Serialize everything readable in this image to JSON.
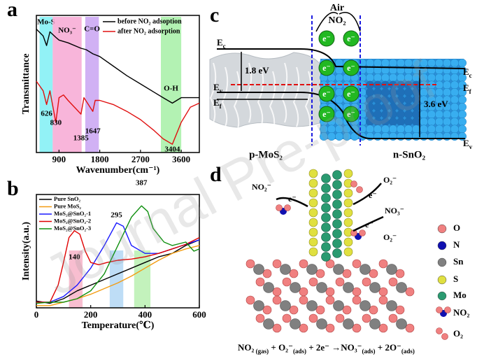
{
  "watermark": "Journal Pre-proof",
  "chart_data": [
    {
      "type": "line",
      "label": "a",
      "ylabel": "Transmittance",
      "xlabel": "Wavenumber(cm⁻¹)",
      "xlim": [
        400,
        4000
      ],
      "xticks": [
        900,
        1800,
        2700,
        3600
      ],
      "ylim": [
        0,
        100
      ],
      "legend": "upper right",
      "bands": [
        {
          "label": "Mo-S",
          "range": [
            470,
            760
          ],
          "color": "#7ff0f5"
        },
        {
          "label": "NO₃⁻",
          "range": [
            760,
            1400
          ],
          "color": "#f7a8d4"
        },
        {
          "label": "C=O",
          "range": [
            1480,
            1780
          ],
          "color": "#c9a3f2"
        },
        {
          "label": "O-H",
          "range": [
            3150,
            3600
          ],
          "color": "#a6f0a6"
        }
      ],
      "peaks": [
        626,
        830,
        1385,
        1647,
        3404
      ],
      "series": [
        {
          "name": "before NO₂ adsoption",
          "color": "#000000",
          "x": [
            400,
            550,
            626,
            700,
            830,
            900,
            1100,
            1385,
            1500,
            1647,
            1800,
            2100,
            2400,
            2700,
            3000,
            3200,
            3404,
            3600,
            3800,
            4000
          ],
          "values": [
            90,
            85,
            78,
            88,
            84,
            82,
            80,
            76,
            75,
            72,
            70,
            63,
            56,
            50,
            44,
            40,
            36,
            40,
            40,
            40
          ]
        },
        {
          "name": "after NO₂ adsorption",
          "color": "#e01010",
          "x": [
            400,
            550,
            626,
            700,
            830,
            900,
            1000,
            1100,
            1385,
            1450,
            1647,
            1700,
            1800,
            2100,
            2400,
            2700,
            3000,
            3200,
            3404,
            3600,
            3800,
            4000
          ],
          "values": [
            52,
            45,
            35,
            45,
            22,
            40,
            42,
            38,
            28,
            40,
            30,
            38,
            38,
            35,
            30,
            24,
            16,
            10,
            6,
            22,
            33,
            36
          ]
        }
      ]
    },
    {
      "type": "line",
      "label": "b",
      "ylabel": "Intensity(a.u.)",
      "xlabel": "Temperature(℃)",
      "xlim": [
        0,
        600
      ],
      "xticks": [
        0,
        200,
        400,
        600
      ],
      "ylim": [
        0,
        100
      ],
      "legend": "upper left",
      "bands": [
        {
          "range": [
            120,
            170
          ],
          "color": "#f7b3c8"
        },
        {
          "range": [
            270,
            320
          ],
          "color": "#b3d7f5"
        },
        {
          "range": [
            360,
            420
          ],
          "color": "#b8f0b0"
        }
      ],
      "peaks": [
        140,
        295,
        387
      ],
      "series": [
        {
          "name": "Pure SnO₂",
          "color": "#000000",
          "x": [
            0,
            50,
            100,
            150,
            200,
            250,
            300,
            350,
            400,
            450,
            500,
            550,
            600
          ],
          "values": [
            6,
            4,
            8,
            15,
            20,
            25,
            30,
            35,
            40,
            45,
            48,
            55,
            60
          ]
        },
        {
          "name": "Pure MoS₂",
          "color": "#f39c12",
          "x": [
            0,
            50,
            100,
            150,
            200,
            250,
            300,
            350,
            400,
            450,
            500,
            550,
            600
          ],
          "values": [
            2,
            2,
            5,
            8,
            12,
            17,
            22,
            28,
            35,
            42,
            48,
            52,
            55
          ]
        },
        {
          "name": "MoS₂@SnO₂-1",
          "color": "#1a1aff",
          "x": [
            0,
            50,
            100,
            150,
            200,
            250,
            295,
            320,
            350,
            400,
            450,
            500,
            550,
            600
          ],
          "values": [
            5,
            5,
            10,
            20,
            35,
            55,
            75,
            72,
            55,
            48,
            48,
            52,
            56,
            60
          ]
        },
        {
          "name": "MoS₂@SnO₂-2",
          "color": "#e00000",
          "x": [
            0,
            50,
            80,
            100,
            120,
            140,
            160,
            180,
            200,
            230,
            260,
            300,
            350,
            400,
            450,
            500,
            550,
            600
          ],
          "values": [
            5,
            5,
            20,
            40,
            62,
            68,
            65,
            50,
            40,
            38,
            40,
            42,
            43,
            45,
            48,
            52,
            56,
            62
          ]
        },
        {
          "name": "MoS₂@SnO₂-3",
          "color": "#109010",
          "x": [
            0,
            50,
            100,
            150,
            200,
            250,
            300,
            350,
            387,
            410,
            430,
            470,
            500,
            550,
            580,
            600
          ],
          "values": [
            4,
            5,
            5,
            8,
            15,
            30,
            55,
            80,
            90,
            85,
            70,
            58,
            55,
            58,
            50,
            52
          ]
        }
      ]
    }
  ],
  "diagram_c": {
    "label": "c",
    "air": "Air",
    "gas": "NO₂",
    "electron": "e⁻",
    "left_levels": [
      {
        "main": "E",
        "sub": "c"
      },
      {
        "main": "E",
        "sub": "v"
      },
      {
        "main": "E",
        "sub": "f"
      }
    ],
    "right_levels": [
      {
        "main": "E",
        "sub": "c"
      },
      {
        "main": "E",
        "sub": "f"
      },
      {
        "main": "E",
        "sub": "v"
      }
    ],
    "gap_left": "1.8 eV",
    "gap_right": "3.6 eV",
    "left_material": "p-MoS₂",
    "right_material": "n-SnO₂"
  },
  "diagram_d": {
    "label": "d",
    "species": [
      "NO₂⁻",
      "O₂⁻",
      "NO₃⁻",
      "O₂⁻"
    ],
    "electron": "e⁻",
    "legend": [
      {
        "name": "O",
        "color": "#f08080"
      },
      {
        "name": "N",
        "color": "#1010b0"
      },
      {
        "name": "Sn",
        "color": "#808080"
      },
      {
        "name": "S",
        "color": "#e0e040"
      },
      {
        "name": "Mo",
        "color": "#2a9a70"
      },
      {
        "name": "NO₂"
      },
      {
        "name": "O₂"
      }
    ],
    "equation": [
      {
        "main": "NO₂",
        "sub": " (gas)"
      },
      {
        "main": " + O₂⁻",
        "sub": "(ads)"
      },
      {
        "main": " + 2e⁻ →NO₃⁻",
        "sub": "(ads)"
      },
      {
        "main": " + 2O⁻",
        "sub": "(ads)"
      }
    ]
  }
}
